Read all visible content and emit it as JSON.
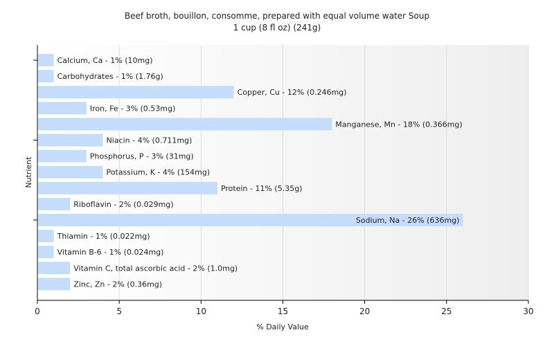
{
  "chart_data": {
    "type": "bar",
    "orientation": "horizontal",
    "title": "Beef broth, bouillon, consomme, prepared with equal volume water Soup",
    "subtitle": "1 cup (8 fl oz) (241g)",
    "xlabel": "% Daily Value",
    "ylabel": "Nutrient",
    "xlim": [
      0,
      30
    ],
    "xticks": [
      "0",
      "5",
      "10",
      "15",
      "20",
      "25",
      "30"
    ],
    "grid": true,
    "bar_color": "#c6dcfb",
    "categories": [
      "Calcium, Ca",
      "Carbohydrates",
      "Copper, Cu",
      "Iron, Fe",
      "Manganese, Mn",
      "Niacin",
      "Phosphorus, P",
      "Potassium, K",
      "Protein",
      "Riboflavin",
      "Sodium, Na",
      "Thiamin",
      "Vitamin B-6",
      "Vitamin C, total ascorbic acid",
      "Zinc, Zn"
    ],
    "values": [
      1,
      1,
      12,
      3,
      18,
      4,
      3,
      4,
      11,
      2,
      26,
      1,
      1,
      2,
      2
    ],
    "labels": [
      "Calcium, Ca - 1% (10mg)",
      "Carbohydrates - 1% (1.76g)",
      "Copper, Cu - 12% (0.246mg)",
      "Iron, Fe - 3% (0.53mg)",
      "Manganese, Mn - 18% (0.366mg)",
      "Niacin - 4% (0.711mg)",
      "Phosphorus, P - 3% (31mg)",
      "Potassium, K - 4% (154mg)",
      "Protein - 11% (5.35g)",
      "Riboflavin - 2% (0.029mg)",
      "Sodium, Na - 26% (636mg)",
      "Thiamin - 1% (0.022mg)",
      "Vitamin B-6 - 1% (0.024mg)",
      "Vitamin C, total ascorbic acid - 2% (1.0mg)",
      "Zinc, Zn - 2% (0.36mg)"
    ]
  }
}
